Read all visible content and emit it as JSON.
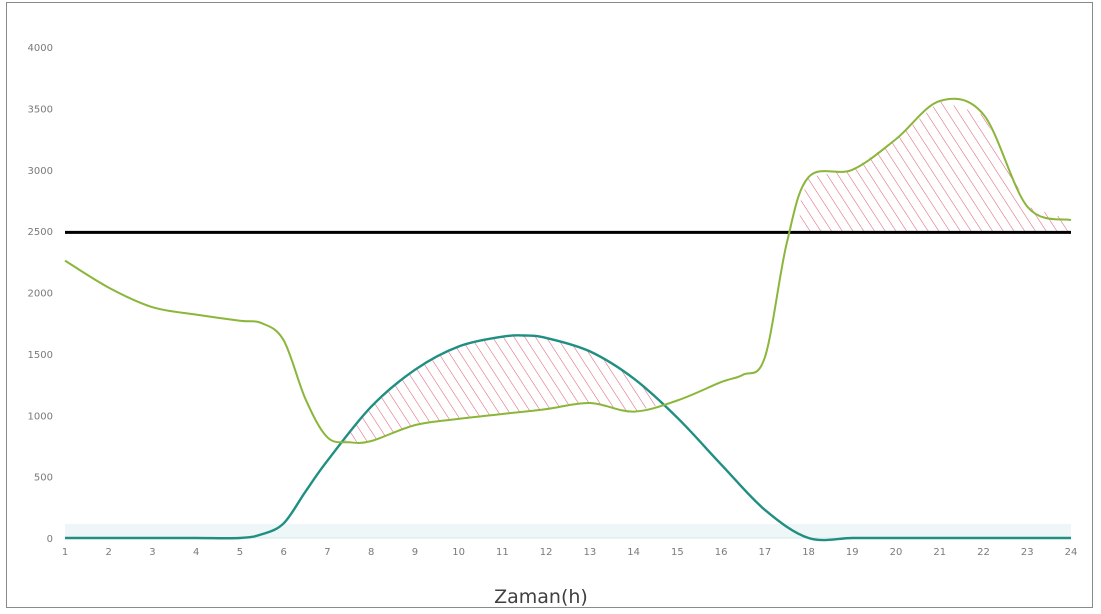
{
  "chart_data": {
    "type": "line",
    "title": "",
    "xlabel": "Zaman(h)",
    "ylabel": "",
    "x": [
      1,
      2,
      3,
      4,
      5,
      6,
      7,
      8,
      9,
      10,
      11,
      12,
      13,
      14,
      15,
      16,
      17,
      18,
      19,
      20,
      21,
      22,
      23,
      24
    ],
    "xlim": [
      1,
      24
    ],
    "ylim": [
      0,
      4000
    ],
    "yticks": [
      0,
      500,
      1000,
      1500,
      2000,
      2500,
      3000,
      3500,
      4000
    ],
    "grid": false,
    "legend": "none",
    "series": [
      {
        "name": "",
        "color": "#8ab63a",
        "x": [
          1,
          2,
          3,
          4,
          5,
          5.5,
          6,
          6.5,
          7,
          7.5,
          8,
          9,
          10,
          11,
          12,
          13,
          14,
          15,
          16,
          16.5,
          17,
          17.5,
          18,
          19,
          20,
          21,
          22,
          23,
          24
        ],
        "values": [
          2260,
          2040,
          1880,
          1820,
          1770,
          1750,
          1610,
          1130,
          820,
          780,
          790,
          920,
          970,
          1010,
          1050,
          1100,
          1030,
          1120,
          1270,
          1330,
          1470,
          2400,
          2940,
          3000,
          3250,
          3560,
          3450,
          2700,
          2590
        ]
      },
      {
        "name": "",
        "color": "#1f8f82",
        "x": [
          1,
          2,
          3,
          4,
          5,
          5.5,
          6,
          6.5,
          7,
          8,
          9,
          10,
          11,
          11.5,
          12,
          13,
          14,
          15,
          16,
          17,
          18,
          19,
          20,
          21,
          22,
          23,
          24
        ],
        "values": [
          0,
          0,
          0,
          0,
          0,
          30,
          120,
          380,
          630,
          1070,
          1370,
          1560,
          1640,
          1650,
          1630,
          1520,
          1300,
          980,
          600,
          230,
          0,
          0,
          0,
          0,
          0,
          0,
          0
        ]
      },
      {
        "name": "",
        "color": "#000000",
        "x": [
          1,
          24
        ],
        "values": [
          2490,
          2490
        ]
      }
    ],
    "annotations": [
      {
        "type": "hatched-region",
        "between": "series 1 above series 0",
        "x_range": [
          7.4,
          14.7
        ],
        "color": "#e0607a"
      },
      {
        "type": "hatched-region",
        "between": "series 0 above threshold 2490",
        "x_range": [
          17.8,
          24
        ],
        "color": "#e0607a"
      }
    ]
  }
}
